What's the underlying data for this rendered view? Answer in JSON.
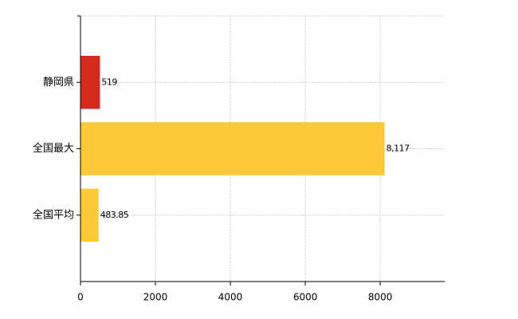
{
  "chart_data": {
    "type": "bar",
    "orientation": "horizontal",
    "categories": [
      "静岡県",
      "全国最大",
      "全国平均"
    ],
    "values": [
      519,
      8117,
      483.85
    ],
    "value_labels": [
      "519",
      "8,117",
      "483.85"
    ],
    "colors": [
      "#d42a1c",
      "#fcc93a",
      "#fcc93a"
    ],
    "xlim": [
      0,
      9720
    ],
    "xticks": [
      0,
      2000,
      4000,
      6000,
      8000
    ],
    "grid": true
  }
}
